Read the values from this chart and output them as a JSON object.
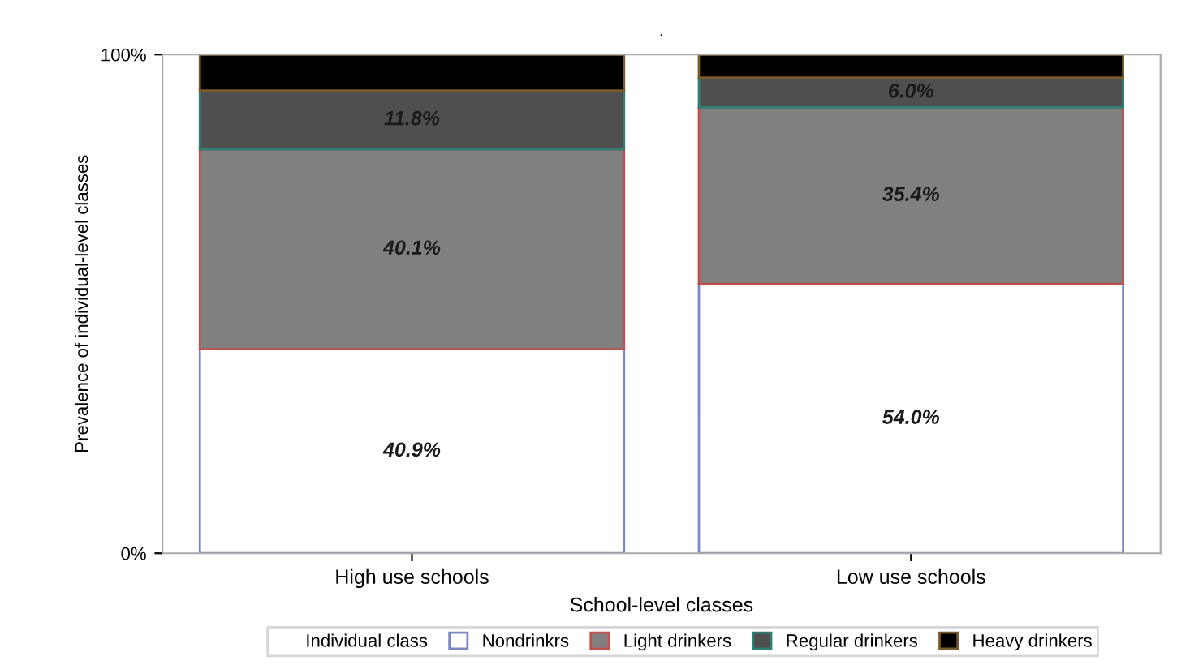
{
  "chart_data": {
    "type": "bar",
    "title": ".",
    "xlabel": "School-level classes",
    "ylabel": "Prevalence of individual-level classes",
    "legend_title": "Individual class",
    "categories": [
      "High use schools",
      "Low use schools"
    ],
    "stacked": true,
    "series": [
      {
        "name": "Nondrinkrs",
        "color": "#ffffff",
        "values": [
          40.9,
          54.0
        ],
        "value_labels": [
          "40.9%",
          "54.0%"
        ]
      },
      {
        "name": "Light drinkers",
        "color": "#808080",
        "values": [
          40.1,
          35.4
        ],
        "value_labels": [
          "40.1%",
          "35.4%"
        ]
      },
      {
        "name": "Regular drinkers",
        "color": "#4f4f4f",
        "values": [
          11.8,
          6.0
        ],
        "value_labels": [
          "11.8%",
          "6.0%"
        ]
      },
      {
        "name": "Heavy drinkers",
        "color": "#000000",
        "values": [
          7.2,
          4.6
        ],
        "value_labels": [
          null,
          null
        ]
      }
    ],
    "ylim": [
      0,
      100
    ],
    "yticks": [
      {
        "value": 0,
        "label": "0%"
      },
      {
        "value": 100,
        "label": "100%"
      }
    ],
    "grid": false,
    "legend": "bottom"
  }
}
